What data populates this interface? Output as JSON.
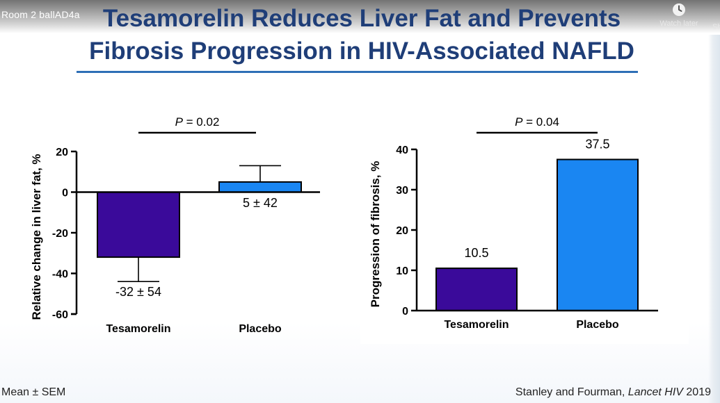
{
  "video": {
    "room_title": "Room 2 ballAD4a",
    "watch_later_label": "Watch later",
    "share_label_partial": "Sh"
  },
  "slide": {
    "title_line1": "Tesamorelin Reduces Liver Fat and Prevents",
    "title_line2": "Fibrosis Progression in HIV-Associated NAFLD",
    "footer_note": "Mean ± SEM",
    "citation_authors": "Stanley and Fourman, ",
    "citation_journal": "Lancet HIV",
    "citation_year": " 2019"
  },
  "colors": {
    "tesamorelin": "#3a0a9a",
    "placebo": "#1a86f2",
    "title": "#1f3e78",
    "rule": "#2e6fb6"
  },
  "chart_data": [
    {
      "type": "bar",
      "categories": [
        "Tesamorelin",
        "Placebo"
      ],
      "values": [
        -32,
        5
      ],
      "error_upper": [
        null,
        13
      ],
      "error_lower": [
        -44,
        null
      ],
      "data_labels": [
        "-32 ± 54",
        "5 ± 42"
      ],
      "ylabel": "Relative change in liver fat, %",
      "ylim": [
        -60,
        20
      ],
      "yticks": [
        20,
        0,
        -20,
        -40,
        -60
      ],
      "yticklabels": [
        "20",
        "0",
        "-20",
        "-40",
        "-60"
      ],
      "significance": {
        "p_italic": "P",
        "p_value": " = 0.02"
      },
      "grid": false
    },
    {
      "type": "bar",
      "categories": [
        "Tesamorelin",
        "Placebo"
      ],
      "values": [
        10.5,
        37.5
      ],
      "data_labels": [
        "10.5",
        "37.5"
      ],
      "ylabel": "Progression of fibrosis, %",
      "ylim": [
        0,
        40
      ],
      "yticks": [
        0,
        10,
        20,
        30,
        40
      ],
      "yticklabels": [
        "0",
        "10",
        "20",
        "30",
        "40"
      ],
      "significance": {
        "p_italic": "P",
        "p_value": " = 0.04"
      },
      "grid": false
    }
  ]
}
